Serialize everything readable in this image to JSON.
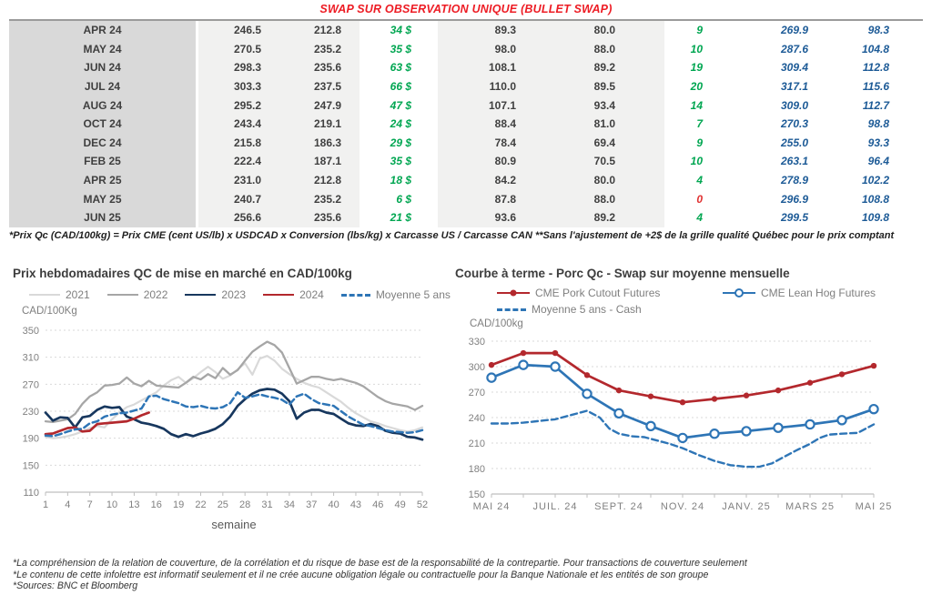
{
  "page_title": "SWAP SUR OBSERVATION UNIQUE (BULLET SWAP)",
  "table": {
    "rows": [
      {
        "month": "APR 24",
        "values": [
          "246.5",
          "212.8",
          "34 $",
          "89.3",
          "80.0",
          "9",
          "269.9",
          "98.3"
        ],
        "delta_red": false
      },
      {
        "month": "MAY 24",
        "values": [
          "270.5",
          "235.2",
          "35 $",
          "98.0",
          "88.0",
          "10",
          "287.6",
          "104.8"
        ],
        "delta_red": false
      },
      {
        "month": "JUN 24",
        "values": [
          "298.3",
          "235.6",
          "63 $",
          "108.1",
          "89.2",
          "19",
          "309.4",
          "112.8"
        ],
        "delta_red": false
      },
      {
        "month": "JUL 24",
        "values": [
          "303.3",
          "237.5",
          "66 $",
          "110.0",
          "89.5",
          "20",
          "317.1",
          "115.6"
        ],
        "delta_red": false
      },
      {
        "month": "AUG 24",
        "values": [
          "295.2",
          "247.9",
          "47 $",
          "107.1",
          "93.4",
          "14",
          "309.0",
          "112.7"
        ],
        "delta_red": false
      },
      {
        "month": "OCT 24",
        "values": [
          "243.4",
          "219.1",
          "24 $",
          "88.4",
          "81.0",
          "7",
          "270.3",
          "98.8"
        ],
        "delta_red": false
      },
      {
        "month": "DEC 24",
        "values": [
          "215.8",
          "186.3",
          "29 $",
          "78.4",
          "69.4",
          "9",
          "255.0",
          "93.3"
        ],
        "delta_red": false
      },
      {
        "month": "FEB 25",
        "values": [
          "222.4",
          "187.1",
          "35 $",
          "80.9",
          "70.5",
          "10",
          "263.1",
          "96.4"
        ],
        "delta_red": false
      },
      {
        "month": "APR 25",
        "values": [
          "231.0",
          "212.8",
          "18 $",
          "84.2",
          "80.0",
          "4",
          "278.9",
          "102.2"
        ],
        "delta_red": false
      },
      {
        "month": "MAY 25",
        "values": [
          "240.7",
          "235.2",
          "6 $",
          "87.8",
          "88.0",
          "0",
          "296.9",
          "108.8"
        ],
        "delta_red": true
      },
      {
        "month": "JUN 25",
        "values": [
          "256.6",
          "235.6",
          "21 $",
          "93.6",
          "89.2",
          "4",
          "299.5",
          "109.8"
        ],
        "delta_red": false
      }
    ],
    "note": "*Prix Qc (CAD/100kg) = Prix CME (cent US/lb) x USDCAD x Conversion (lbs/kg) x Carcasse US / Carcasse CAN **Sans l'ajustement de +2$ de la grille qualité Québec pour le prix comptant"
  },
  "colors": {
    "title_red": "#ed1c24",
    "gain_green": "#00a651",
    "neg_red": "#e03131",
    "futures_blue": "#1c5a96",
    "month_col_bg": "#d9d9d9",
    "num_col_bg": "#f1f1f0"
  },
  "chart_data": [
    {
      "type": "line",
      "title": "Prix hebdomadaires QC de mise en marché en CAD/100kg",
      "ylabel": "CAD/100Kg",
      "xlabel": "semaine",
      "ylim": [
        110,
        350
      ],
      "ystep": 40,
      "xlim": [
        1,
        52
      ],
      "xticks": [
        1,
        4,
        7,
        10,
        13,
        16,
        19,
        22,
        25,
        28,
        31,
        34,
        37,
        40,
        43,
        46,
        49,
        52
      ],
      "grid": "dashed-horizontal",
      "legend_position": "top",
      "series": [
        {
          "name": "2021",
          "color": "#d9d9d9",
          "x_start": 1,
          "values": [
            192,
            190,
            191,
            193,
            196,
            200,
            205,
            208,
            206,
            218,
            228,
            236,
            240,
            246,
            252,
            258,
            268,
            276,
            281,
            272,
            279,
            288,
            296,
            288,
            278,
            283,
            292,
            301,
            284,
            308,
            312,
            305,
            293,
            285,
            278,
            272,
            268,
            265,
            258,
            251,
            244,
            235,
            227,
            221,
            215,
            212,
            208,
            205,
            202,
            200,
            202,
            206
          ]
        },
        {
          "name": "2022",
          "color": "#a6a6a6",
          "x_start": 1,
          "values": [
            215,
            214,
            216,
            218,
            226,
            241,
            252,
            258,
            268,
            269,
            271,
            280,
            271,
            267,
            275,
            268,
            267,
            266,
            265,
            272,
            281,
            277,
            285,
            279,
            294,
            284,
            291,
            305,
            318,
            326,
            333,
            328,
            317,
            294,
            271,
            276,
            281,
            281,
            278,
            276,
            278,
            275,
            272,
            267,
            259,
            251,
            245,
            241,
            239,
            237,
            232,
            238
          ]
        },
        {
          "name": "2023",
          "color": "#17375e",
          "x_start": 1,
          "values": [
            228,
            216,
            221,
            220,
            206,
            221,
            223,
            232,
            237,
            235,
            236,
            222,
            218,
            213,
            211,
            208,
            204,
            196,
            192,
            196,
            193,
            197,
            200,
            204,
            211,
            222,
            238,
            248,
            256,
            261,
            263,
            262,
            256,
            245,
            219,
            228,
            232,
            232,
            228,
            226,
            219,
            212,
            209,
            208,
            211,
            208,
            201,
            198,
            197,
            192,
            191,
            188
          ]
        },
        {
          "name": "2024",
          "color": "#b3282d",
          "x_start": 1,
          "values": [
            196,
            197,
            201,
            205,
            206,
            200,
            201,
            211,
            212,
            213,
            214,
            215,
            219,
            224,
            228
          ]
        },
        {
          "name": "Moyenne 5 ans",
          "color": "#2e75b6",
          "dash": true,
          "x_start": 1,
          "values": [
            194,
            193,
            196,
            200,
            203,
            204,
            212,
            215,
            222,
            225,
            227,
            228,
            231,
            234,
            252,
            253,
            248,
            245,
            242,
            237,
            236,
            238,
            235,
            234,
            236,
            242,
            258,
            250,
            252,
            255,
            252,
            250,
            247,
            240,
            252,
            256,
            248,
            242,
            240,
            238,
            230,
            222,
            216,
            210,
            208,
            205,
            202,
            200,
            199,
            198,
            199,
            202
          ]
        }
      ]
    },
    {
      "type": "line",
      "title": "Courbe à terme - Porc Qc - Swap sur moyenne mensuelle",
      "ylabel": "CAD/100kg",
      "xlabel": "",
      "ylim": [
        150,
        330
      ],
      "ystep": 30,
      "xlim": [
        0,
        12
      ],
      "xticks": [
        0,
        1,
        2,
        3,
        4,
        5,
        6,
        7,
        8,
        9,
        10,
        11,
        12
      ],
      "xticklabels": [
        "MAI 24",
        "",
        "JUIL. 24",
        "",
        "SEPT. 24",
        "",
        "NOV. 24",
        "",
        "JANV. 25",
        "",
        "MARS 25",
        "",
        "MAI 25"
      ],
      "grid": "dashed-horizontal",
      "legend_position": "top",
      "series": [
        {
          "name": "CME Pork Cutout Futures",
          "color": "#b3282d",
          "marker": "filled",
          "x_start": 0,
          "values": [
            302,
            316,
            316,
            290,
            272,
            265,
            258,
            262,
            266,
            272,
            281,
            291,
            301
          ]
        },
        {
          "name": "CME Lean Hog Futures",
          "color": "#2e75b6",
          "marker": "open",
          "x_start": 0,
          "values": [
            287,
            302,
            300,
            268,
            245,
            230,
            216,
            221,
            224,
            228,
            232,
            237,
            250
          ]
        },
        {
          "name": "Moyenne 5 ans - Cash",
          "color": "#2e75b6",
          "dash": true,
          "points": [
            [
              0,
              233
            ],
            [
              0.5,
              233
            ],
            [
              1,
              234
            ],
            [
              1.5,
              236
            ],
            [
              2,
              238
            ],
            [
              2.5,
              243
            ],
            [
              3,
              248
            ],
            [
              3.4,
              240
            ],
            [
              3.7,
              227
            ],
            [
              4,
              221
            ],
            [
              4.4,
              218
            ],
            [
              4.8,
              217
            ],
            [
              5.2,
              213
            ],
            [
              5.6,
              209
            ],
            [
              6,
              204
            ],
            [
              6.5,
              196
            ],
            [
              7,
              189
            ],
            [
              7.5,
              184
            ],
            [
              8,
              182
            ],
            [
              8.4,
              182
            ],
            [
              8.8,
              186
            ],
            [
              9.2,
              194
            ],
            [
              9.6,
              202
            ],
            [
              10,
              209
            ],
            [
              10.3,
              216
            ],
            [
              10.6,
              220
            ],
            [
              11,
              221
            ],
            [
              11.5,
              222
            ],
            [
              12,
              232
            ]
          ]
        }
      ]
    }
  ],
  "footnotes": [
    "*La compréhension de la relation de couverture, de la corrélation et du risque de base est de la responsabilité de la contrepartie. Pour transactions de couverture seulement",
    "*Le contenu de cette infolettre est informatif seulement et il ne crée aucune obligation légale ou contractuelle pour la Banque Nationale et les entités de son groupe",
    "*Sources: BNC et Bloomberg"
  ]
}
